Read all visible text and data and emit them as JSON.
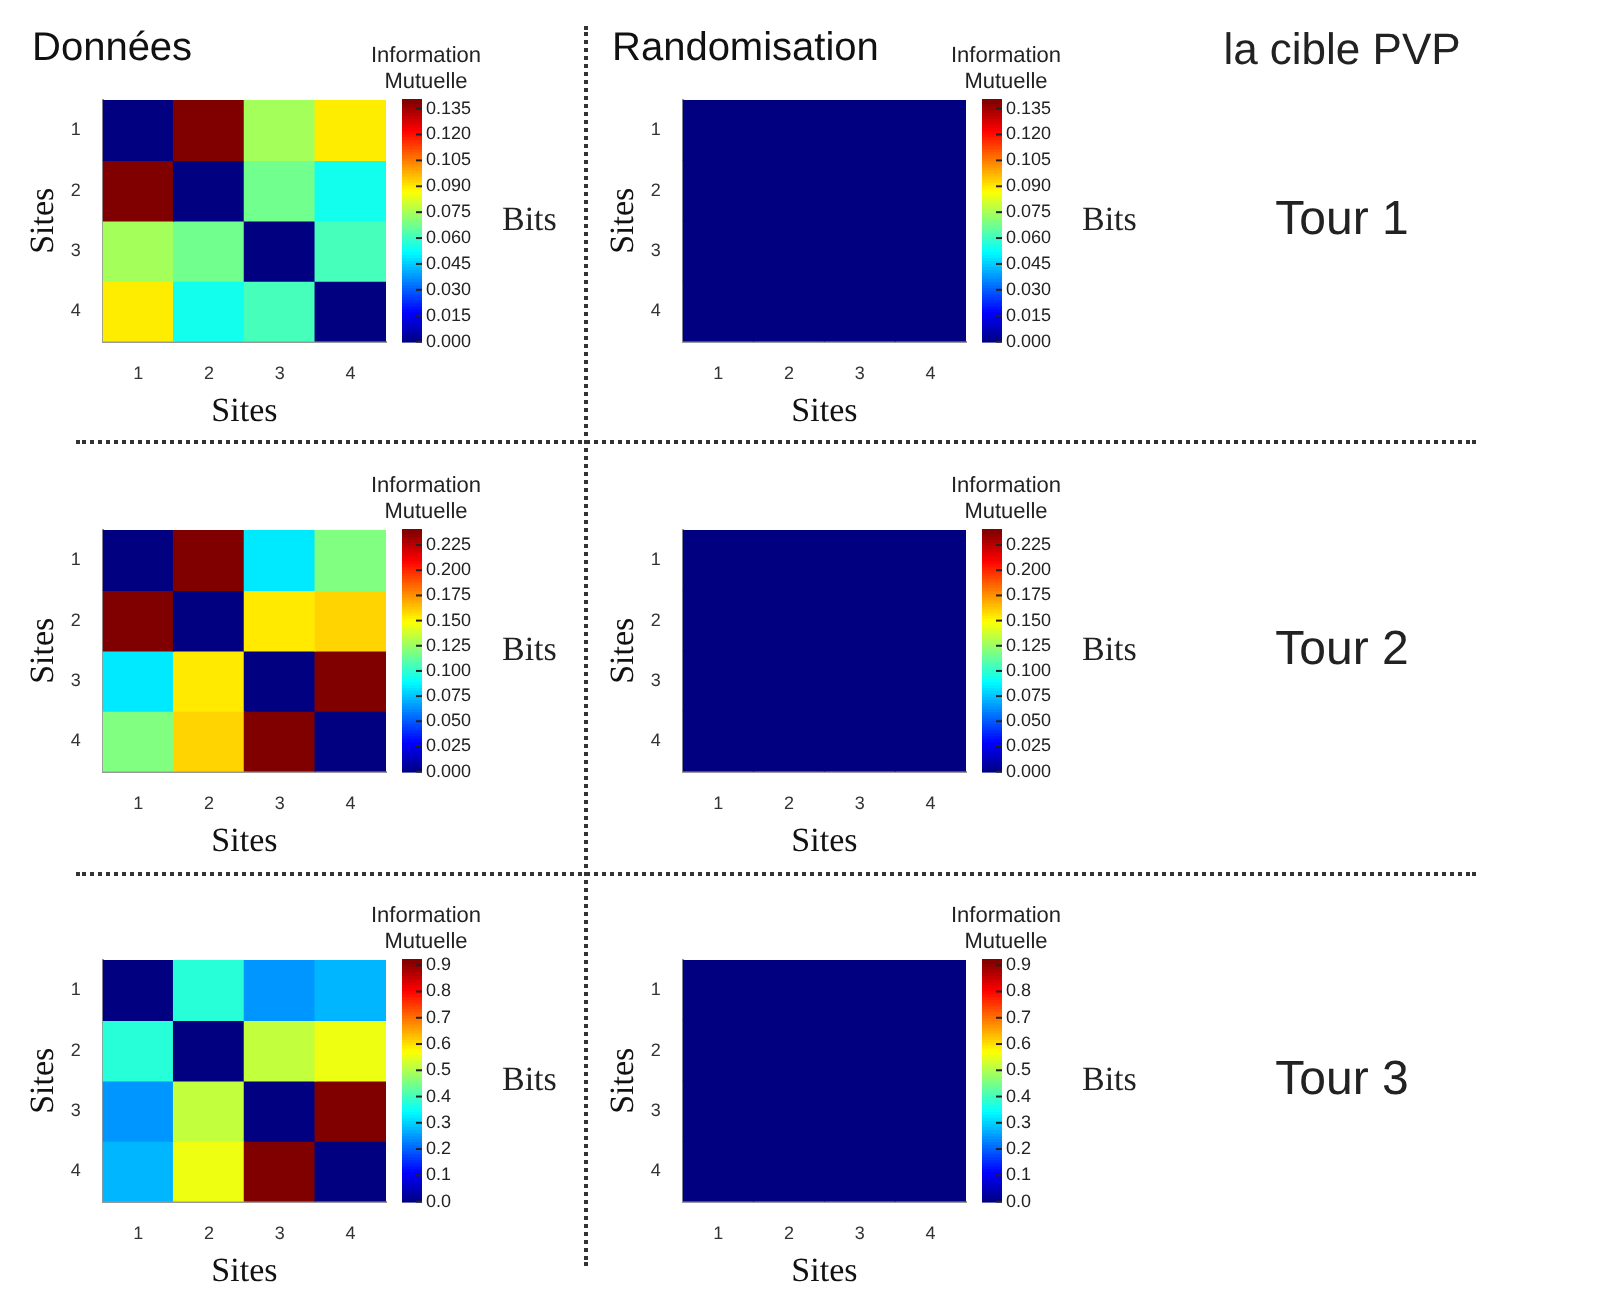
{
  "chart_data": [
    {
      "type": "heatmap",
      "title": "Données",
      "xlabel": "Sites",
      "ylabel": "Sites",
      "clabel": "Information Mutuelle",
      "annotations": [
        "Bits"
      ],
      "categories": [
        "1",
        "2",
        "3",
        "4"
      ],
      "y_categories": [
        "1",
        "2",
        "3",
        "4"
      ],
      "cells": [
        [
          0,
          0.14,
          0.075,
          0.09
        ],
        [
          0.14,
          0,
          0.068,
          0.055
        ],
        [
          0.075,
          0.068,
          0,
          0.062
        ],
        [
          0.09,
          0.055,
          0.062,
          0
        ]
      ],
      "clim": [
        0,
        0.14
      ],
      "cticks": [
        {
          "value": 0,
          "label": "0.000"
        },
        {
          "value": 0.015,
          "label": "0.015"
        },
        {
          "value": 0.03,
          "label": "0.030"
        },
        {
          "value": 0.045,
          "label": "0.045"
        },
        {
          "value": 0.06,
          "label": "0.060"
        },
        {
          "value": 0.075,
          "label": "0.075"
        },
        {
          "value": 0.09,
          "label": "0.090"
        },
        {
          "value": 0.105,
          "label": "0.105"
        },
        {
          "value": 0.12,
          "label": "0.120"
        },
        {
          "value": 0.135,
          "label": "0.135"
        }
      ]
    },
    {
      "type": "heatmap",
      "title": "Randomisation",
      "xlabel": "Sites",
      "ylabel": "Sites",
      "clabel": "Information Mutuelle",
      "annotations": [
        "Bits",
        "la cible PVP",
        "Tour 1"
      ],
      "categories": [
        "1",
        "2",
        "3",
        "4"
      ],
      "y_categories": [
        "1",
        "2",
        "3",
        "4"
      ],
      "cells": [
        [
          0,
          0,
          0,
          0
        ],
        [
          0,
          0,
          0,
          0
        ],
        [
          0,
          0,
          0,
          0
        ],
        [
          0,
          0,
          0,
          0
        ]
      ],
      "clim": [
        0,
        0.14
      ],
      "cticks": [
        {
          "value": 0,
          "label": "0.000"
        },
        {
          "value": 0.015,
          "label": "0.015"
        },
        {
          "value": 0.03,
          "label": "0.030"
        },
        {
          "value": 0.045,
          "label": "0.045"
        },
        {
          "value": 0.06,
          "label": "0.060"
        },
        {
          "value": 0.075,
          "label": "0.075"
        },
        {
          "value": 0.09,
          "label": "0.090"
        },
        {
          "value": 0.105,
          "label": "0.105"
        },
        {
          "value": 0.12,
          "label": "0.120"
        },
        {
          "value": 0.135,
          "label": "0.135"
        }
      ]
    },
    {
      "type": "heatmap",
      "xlabel": "Sites",
      "ylabel": "Sites",
      "clabel": "Information Mutuelle",
      "annotations": [
        "Bits"
      ],
      "categories": [
        "1",
        "2",
        "3",
        "4"
      ],
      "y_categories": [
        "1",
        "2",
        "3",
        "4"
      ],
      "cells": [
        [
          0,
          0.24,
          0.085,
          0.12
        ],
        [
          0.24,
          0,
          0.155,
          0.16
        ],
        [
          0.085,
          0.155,
          0,
          0.24
        ],
        [
          0.12,
          0.16,
          0.24,
          0
        ]
      ],
      "clim": [
        0,
        0.24
      ],
      "cticks": [
        {
          "value": 0,
          "label": "0.000"
        },
        {
          "value": 0.025,
          "label": "0.025"
        },
        {
          "value": 0.05,
          "label": "0.050"
        },
        {
          "value": 0.075,
          "label": "0.075"
        },
        {
          "value": 0.1,
          "label": "0.100"
        },
        {
          "value": 0.125,
          "label": "0.125"
        },
        {
          "value": 0.15,
          "label": "0.150"
        },
        {
          "value": 0.175,
          "label": "0.175"
        },
        {
          "value": 0.2,
          "label": "0.200"
        },
        {
          "value": 0.225,
          "label": "0.225"
        }
      ]
    },
    {
      "type": "heatmap",
      "xlabel": "Sites",
      "ylabel": "Sites",
      "clabel": "Information Mutuelle",
      "annotations": [
        "Bits",
        "Tour 2"
      ],
      "categories": [
        "1",
        "2",
        "3",
        "4"
      ],
      "y_categories": [
        "1",
        "2",
        "3",
        "4"
      ],
      "cells": [
        [
          0,
          0,
          0,
          0
        ],
        [
          0,
          0,
          0,
          0
        ],
        [
          0,
          0,
          0,
          0
        ],
        [
          0,
          0,
          0,
          0
        ]
      ],
      "clim": [
        0,
        0.24
      ],
      "cticks": [
        {
          "value": 0,
          "label": "0.000"
        },
        {
          "value": 0.025,
          "label": "0.025"
        },
        {
          "value": 0.05,
          "label": "0.050"
        },
        {
          "value": 0.075,
          "label": "0.075"
        },
        {
          "value": 0.1,
          "label": "0.100"
        },
        {
          "value": 0.125,
          "label": "0.125"
        },
        {
          "value": 0.15,
          "label": "0.150"
        },
        {
          "value": 0.175,
          "label": "0.175"
        },
        {
          "value": 0.2,
          "label": "0.200"
        },
        {
          "value": 0.225,
          "label": "0.225"
        }
      ]
    },
    {
      "type": "heatmap",
      "xlabel": "Sites",
      "ylabel": "Sites",
      "clabel": "Information Mutuelle",
      "annotations": [
        "Bits"
      ],
      "categories": [
        "1",
        "2",
        "3",
        "4"
      ],
      "y_categories": [
        "1",
        "2",
        "3",
        "4"
      ],
      "cells": [
        [
          0,
          0.38,
          0.25,
          0.28
        ],
        [
          0.38,
          0,
          0.52,
          0.56
        ],
        [
          0.25,
          0.52,
          0,
          0.92
        ],
        [
          0.28,
          0.56,
          0.92,
          0
        ]
      ],
      "clim": [
        0,
        0.92
      ],
      "cticks": [
        {
          "value": 0,
          "label": "0.0"
        },
        {
          "value": 0.1,
          "label": "0.1"
        },
        {
          "value": 0.2,
          "label": "0.2"
        },
        {
          "value": 0.3,
          "label": "0.3"
        },
        {
          "value": 0.4,
          "label": "0.4"
        },
        {
          "value": 0.5,
          "label": "0.5"
        },
        {
          "value": 0.6,
          "label": "0.6"
        },
        {
          "value": 0.7,
          "label": "0.7"
        },
        {
          "value": 0.8,
          "label": "0.8"
        },
        {
          "value": 0.9,
          "label": "0.9"
        }
      ]
    },
    {
      "type": "heatmap",
      "xlabel": "Sites",
      "ylabel": "Sites",
      "clabel": "Information Mutuelle",
      "annotations": [
        "Bits",
        "Tour 3"
      ],
      "categories": [
        "1",
        "2",
        "3",
        "4"
      ],
      "y_categories": [
        "1",
        "2",
        "3",
        "4"
      ],
      "cells": [
        [
          0,
          0,
          0,
          0
        ],
        [
          0,
          0,
          0,
          0
        ],
        [
          0,
          0,
          0,
          0
        ],
        [
          0,
          0,
          0,
          0
        ]
      ],
      "clim": [
        0,
        0.92
      ],
      "cticks": [
        {
          "value": 0,
          "label": "0.0"
        },
        {
          "value": 0.1,
          "label": "0.1"
        },
        {
          "value": 0.2,
          "label": "0.2"
        },
        {
          "value": 0.3,
          "label": "0.3"
        },
        {
          "value": 0.4,
          "label": "0.4"
        },
        {
          "value": 0.5,
          "label": "0.5"
        },
        {
          "value": 0.6,
          "label": "0.6"
        },
        {
          "value": 0.7,
          "label": "0.7"
        },
        {
          "value": 0.8,
          "label": "0.8"
        },
        {
          "value": 0.9,
          "label": "0.9"
        }
      ]
    }
  ]
}
